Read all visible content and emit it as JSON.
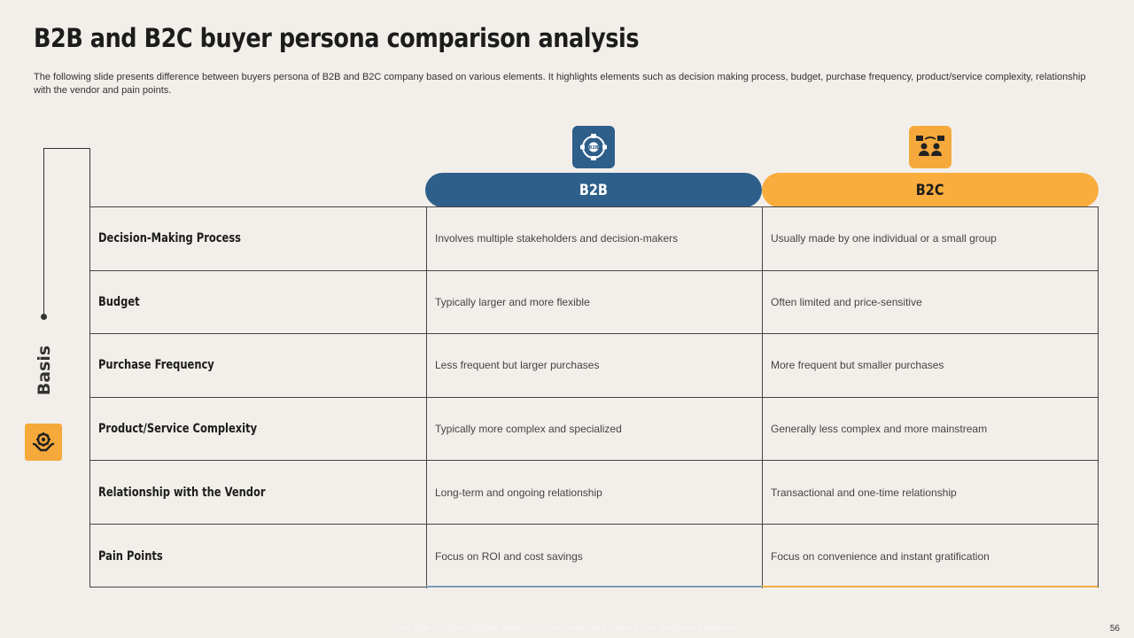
{
  "title": "B2B and B2C buyer persona comparison analysis",
  "subtitle": "The following slide presents difference between buyers persona of B2B and B2C company based on various elements. It highlights elements such as decision making process, budget, purchase frequency, product/service complexity, relationship with the vendor and pain points.",
  "basis_label": "Basis",
  "icons": {
    "b2b": "b2b-network-icon",
    "b2c": "b2c-people-icon",
    "basis": "hands-gear-icon"
  },
  "colors": {
    "b2b": "#2e5f8a",
    "b2c": "#f8ad3d",
    "background": "#f2efeb"
  },
  "columns": {
    "b2b": "B2B",
    "b2c": "B2C"
  },
  "rows": [
    {
      "basis": "Decision-Making Process",
      "b2b": "Involves multiple stakeholders and decision-makers",
      "b2c": "Usually made by one individual or a small group"
    },
    {
      "basis": "Budget",
      "b2b": "Typically larger and more flexible",
      "b2c": "Often limited and price-sensitive"
    },
    {
      "basis": "Purchase Frequency",
      "b2b": "Less frequent but larger purchases",
      "b2c": "More frequent but smaller purchases"
    },
    {
      "basis": "Product/Service Complexity",
      "b2b": "Typically more complex and specialized",
      "b2c": "Generally less complex and more mainstream"
    },
    {
      "basis": "Relationship with the Vendor",
      "b2b": "Long-term and ongoing relationship",
      "b2c": "Transactional and one-time relationship"
    },
    {
      "basis": "Pain Points",
      "b2b": "Focus on ROI and cost savings",
      "b2c": "Focus on convenience and instant gratification"
    }
  ],
  "footer": "This slide is 100% editable. Adapt it to your needs and capture your audience's attention.",
  "page_number": "56"
}
